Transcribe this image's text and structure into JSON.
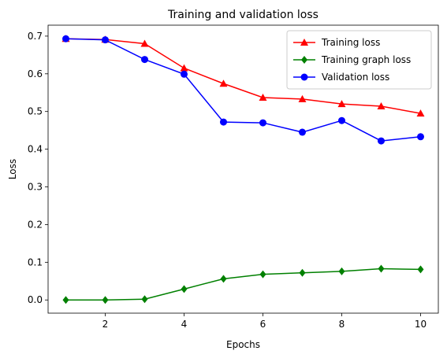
{
  "chart_data": {
    "type": "line",
    "title": "Training and validation loss",
    "xlabel": "Epochs",
    "ylabel": "Loss",
    "xlim": [
      0.55,
      10.45
    ],
    "ylim": [
      -0.035,
      0.729
    ],
    "x_ticks": [
      2,
      4,
      6,
      8,
      10
    ],
    "y_ticks": [
      0.0,
      0.1,
      0.2,
      0.3,
      0.4,
      0.5,
      0.6,
      0.7
    ],
    "x": [
      1,
      2,
      3,
      4,
      5,
      6,
      7,
      8,
      9,
      10
    ],
    "grid": false,
    "legend_position": "top-right",
    "series": [
      {
        "name": "Training loss",
        "color": "#ff0000",
        "marker": "triangle",
        "values": [
          0.693,
          0.691,
          0.68,
          0.615,
          0.574,
          0.537,
          0.533,
          0.52,
          0.514,
          0.495
        ]
      },
      {
        "name": "Training graph loss",
        "color": "#008000",
        "marker": "diamond",
        "values": [
          0.0,
          0.0,
          0.002,
          0.029,
          0.056,
          0.068,
          0.072,
          0.076,
          0.083,
          0.081
        ]
      },
      {
        "name": "Validation loss",
        "color": "#0000ff",
        "marker": "circle",
        "values": [
          0.693,
          0.69,
          0.638,
          0.599,
          0.472,
          0.47,
          0.445,
          0.476,
          0.422,
          0.433
        ]
      }
    ]
  }
}
